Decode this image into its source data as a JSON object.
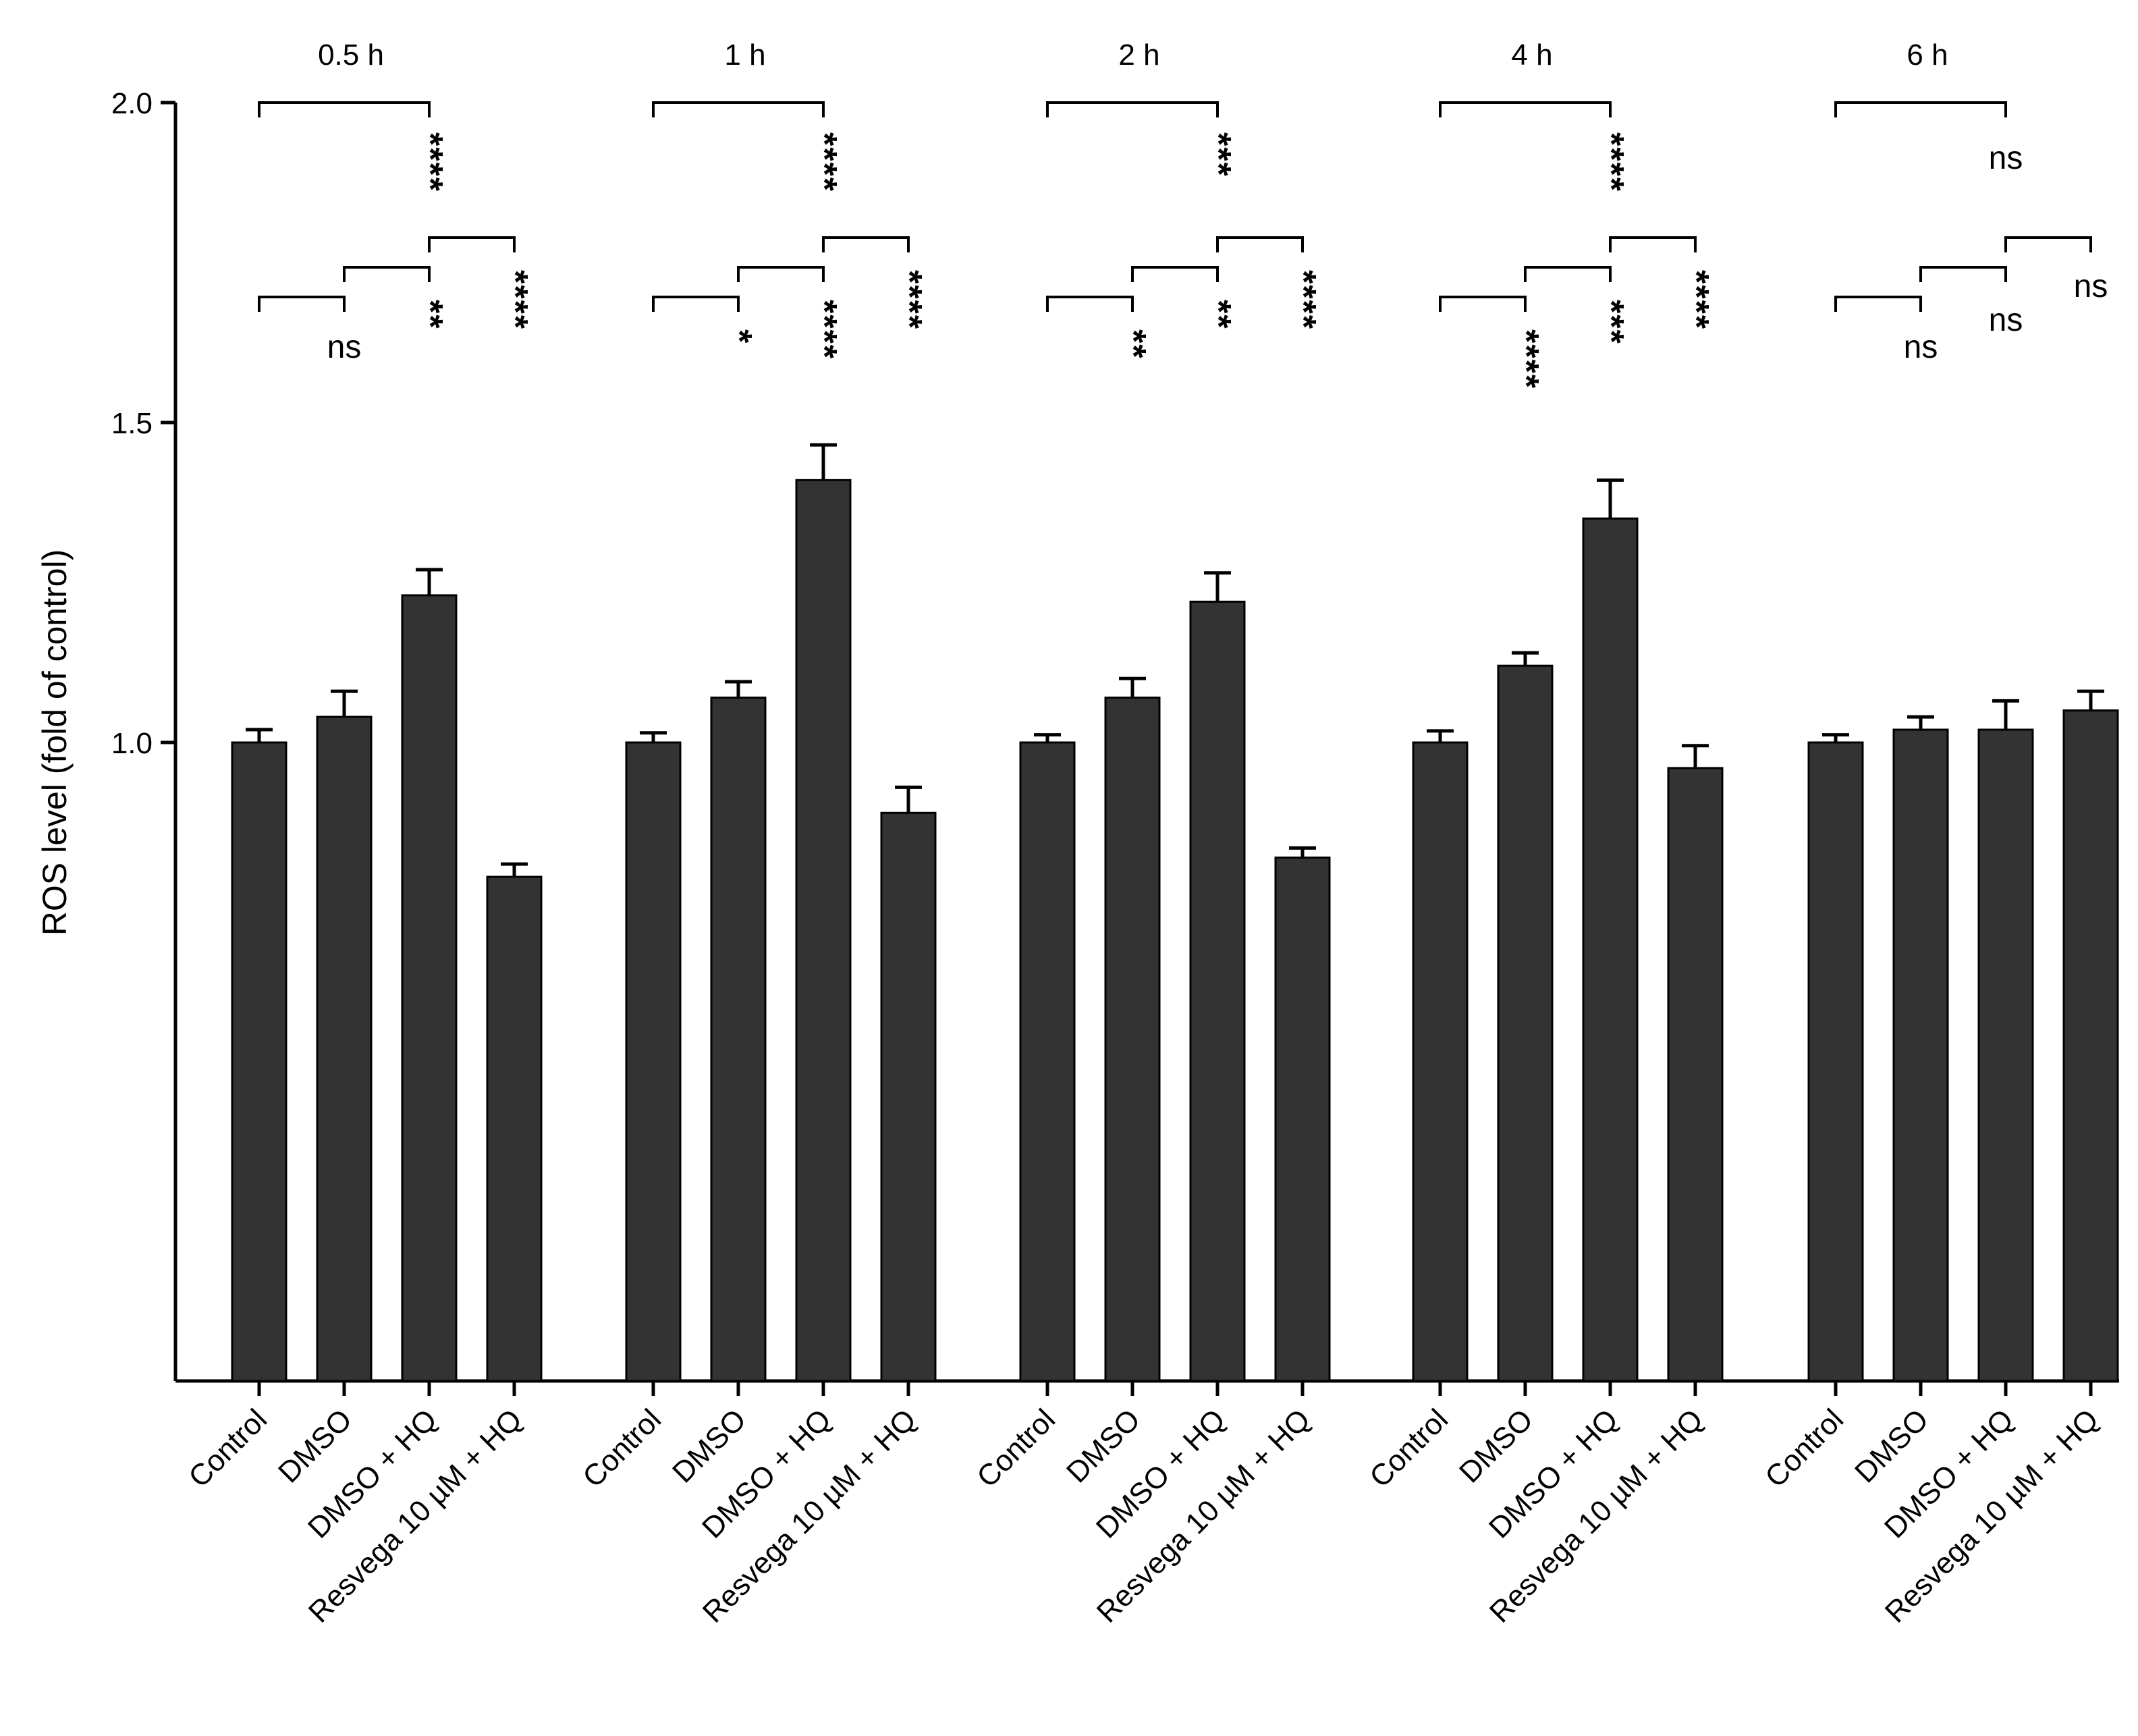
{
  "chart_data": {
    "type": "bar",
    "title": "",
    "xlabel": "",
    "ylabel": "ROS level (fold of control)",
    "ylim": [
      0,
      2.0
    ],
    "yticks": [
      1.0,
      1.5,
      2.0
    ],
    "y_tick_labels": [
      "1.0",
      "1.5",
      "2.0"
    ],
    "bar_color": "#333333",
    "categories": [
      "Control",
      "DMSO",
      "DMSO + HQ",
      "Resvega 10 µM + HQ"
    ],
    "groups": [
      {
        "label": "0.5 h",
        "values": [
          1.0,
          1.04,
          1.23,
          0.79
        ],
        "errors": [
          0.02,
          0.04,
          0.04,
          0.02
        ],
        "comparisons": [
          {
            "from": 0,
            "to": 2,
            "label": "****",
            "level": 1
          },
          {
            "from": 2,
            "to": 3,
            "label": "****",
            "level": 2
          },
          {
            "from": 1,
            "to": 2,
            "label": "**",
            "level": 3
          },
          {
            "from": 0,
            "to": 1,
            "label": "ns",
            "level": 4
          }
        ]
      },
      {
        "label": "1 h",
        "values": [
          1.0,
          1.07,
          1.41,
          0.89
        ],
        "errors": [
          0.015,
          0.025,
          0.055,
          0.04
        ],
        "comparisons": [
          {
            "from": 0,
            "to": 2,
            "label": "****",
            "level": 1
          },
          {
            "from": 2,
            "to": 3,
            "label": "****",
            "level": 2
          },
          {
            "from": 1,
            "to": 2,
            "label": "****",
            "level": 3
          },
          {
            "from": 0,
            "to": 1,
            "label": "*",
            "level": 4
          }
        ]
      },
      {
        "label": "2 h",
        "values": [
          1.0,
          1.07,
          1.22,
          0.82
        ],
        "errors": [
          0.012,
          0.03,
          0.045,
          0.015
        ],
        "comparisons": [
          {
            "from": 0,
            "to": 2,
            "label": "***",
            "level": 1
          },
          {
            "from": 2,
            "to": 3,
            "label": "****",
            "level": 2
          },
          {
            "from": 1,
            "to": 2,
            "label": "**",
            "level": 3
          },
          {
            "from": 0,
            "to": 1,
            "label": "**",
            "level": 4
          }
        ]
      },
      {
        "label": "4 h",
        "values": [
          1.0,
          1.12,
          1.35,
          0.96
        ],
        "errors": [
          0.018,
          0.02,
          0.06,
          0.035
        ],
        "comparisons": [
          {
            "from": 0,
            "to": 2,
            "label": "****",
            "level": 1
          },
          {
            "from": 2,
            "to": 3,
            "label": "****",
            "level": 2
          },
          {
            "from": 1,
            "to": 2,
            "label": "***",
            "level": 3
          },
          {
            "from": 0,
            "to": 1,
            "label": "****",
            "level": 4
          }
        ]
      },
      {
        "label": "6 h",
        "values": [
          1.0,
          1.02,
          1.02,
          1.05
        ],
        "errors": [
          0.012,
          0.02,
          0.045,
          0.03
        ],
        "comparisons": [
          {
            "from": 0,
            "to": 2,
            "label": "ns",
            "level": 1
          },
          {
            "from": 2,
            "to": 3,
            "label": "ns",
            "level": 2
          },
          {
            "from": 1,
            "to": 2,
            "label": "ns",
            "level": 3
          },
          {
            "from": 0,
            "to": 1,
            "label": "ns",
            "level": 4
          }
        ]
      }
    ]
  }
}
